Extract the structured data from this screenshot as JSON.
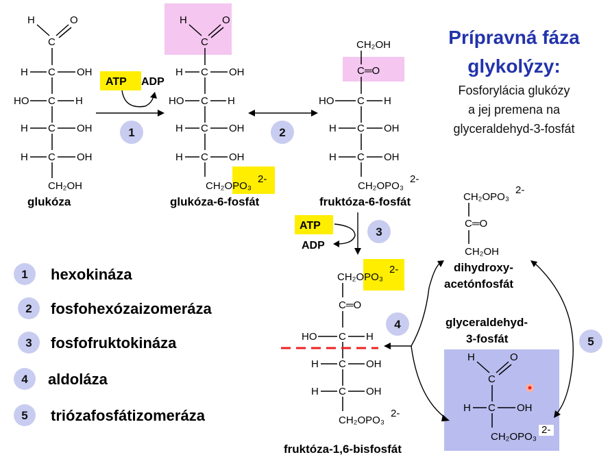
{
  "title": {
    "line1": "Prípravná fáza",
    "line2": "glykolýzy:"
  },
  "subtitle": {
    "line1": "Fosforylácia glukózy",
    "line2": "a jej premena na",
    "line3": "glyceraldehyd-3-fosfát"
  },
  "compounds": {
    "glukoza": "glukóza",
    "g6p": "glukóza-6-fosfát",
    "f6p": "fruktóza-6-fosfát",
    "f16bp": "fruktóza-1,6-bisfosfát",
    "dhap_line1": "dihydroxy-",
    "dhap_line2": "acetónfosfát",
    "g3p_line1": "glyceraldehyd-",
    "g3p_line2": "3-fosfát"
  },
  "cofactors": {
    "atp": "ATP",
    "adp": "ADP"
  },
  "step_numbers": [
    "1",
    "2",
    "3",
    "4",
    "5"
  ],
  "enzymes": [
    {
      "num": "1",
      "name": "hexokináza"
    },
    {
      "num": "2",
      "name": "fosfohexózaizomeráza"
    },
    {
      "num": "3",
      "name": "fosfofruktokináza"
    },
    {
      "num": "4",
      "name": "aldoláza"
    },
    {
      "num": "5",
      "name": "triózafosfátizomeráza"
    }
  ],
  "atoms": {
    "H": "H",
    "O": "O",
    "C": "C",
    "HO": "HO",
    "OH": "OH",
    "CH2OH": "CH₂OH",
    "CH2OPO3": "CH₂OPO₃",
    "charge": "2-",
    "dbl_O": "C═O"
  },
  "colors": {
    "title": "#2233aa",
    "circle": "#c8ccf0",
    "pink": "#f4c6f0",
    "yellow": "#ffee00",
    "blue_box": "#b8bcee",
    "dash": "#ee2222"
  }
}
